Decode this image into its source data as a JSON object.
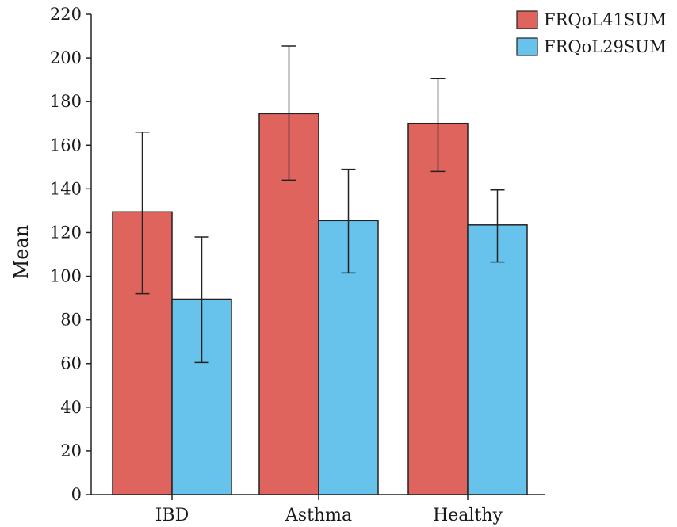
{
  "chart_data": {
    "type": "bar",
    "categories": [
      "IBD",
      "Asthma",
      "Healthy"
    ],
    "series": [
      {
        "name": "FRQoL41SUM",
        "values": [
          129.5,
          174.5,
          170
        ],
        "error_low": [
          92,
          144,
          148
        ],
        "error_high": [
          166,
          205.5,
          190.5
        ],
        "color": "#e0645e"
      },
      {
        "name": "FRQoL29SUM",
        "values": [
          89.5,
          125.5,
          123.5
        ],
        "error_low": [
          60.5,
          101.5,
          106.5
        ],
        "error_high": [
          118,
          149,
          139.5
        ],
        "color": "#67c3eb"
      }
    ],
    "xlabel": "",
    "ylabel": "Mean",
    "ylim": [
      0,
      220
    ],
    "yticks": [
      0,
      20,
      40,
      60,
      80,
      100,
      120,
      140,
      160,
      180,
      200,
      220
    ],
    "grid": false,
    "legend_position": "top-right"
  }
}
